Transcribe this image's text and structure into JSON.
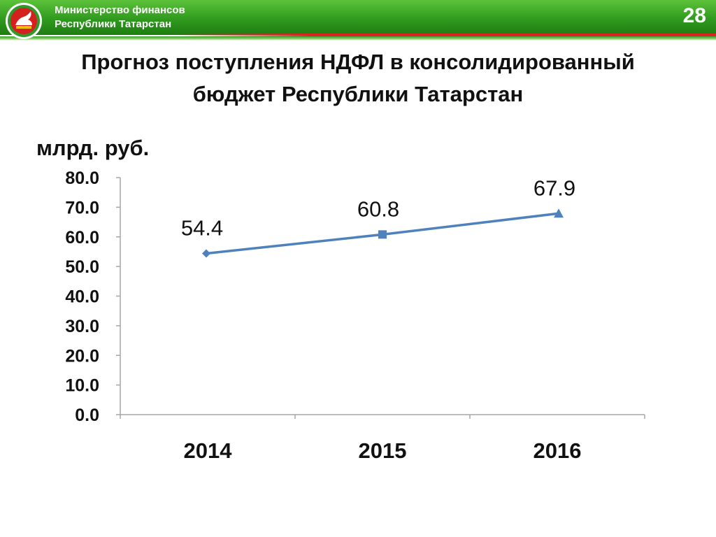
{
  "header": {
    "org_line1": "Министерство финансов",
    "org_line2": "Республики Татарстан",
    "slide_number": "28"
  },
  "title_line1": "Прогноз поступления НДФЛ в консолидированный",
  "title_line2": "бюджет Республики Татарстан",
  "colors": {
    "header_green": "#2f9a1e",
    "accent_red": "#dd2222",
    "series_line": "#4f81bd"
  },
  "chart_data": {
    "type": "line",
    "ylabel": "млрд. руб.",
    "x": [
      "2014",
      "2015",
      "2016"
    ],
    "ylim": [
      0,
      80
    ],
    "y_ticks": [
      "0.0",
      "10.0",
      "20.0",
      "30.0",
      "40.0",
      "50.0",
      "60.0",
      "70.0",
      "80.0"
    ],
    "series": [
      {
        "values": [
          54.4,
          60.8,
          67.9
        ],
        "labels": [
          "54.4",
          "60.8",
          "67.9"
        ],
        "markers": [
          "diamond",
          "square",
          "triangle"
        ]
      }
    ],
    "grid": false,
    "legend": "none"
  }
}
